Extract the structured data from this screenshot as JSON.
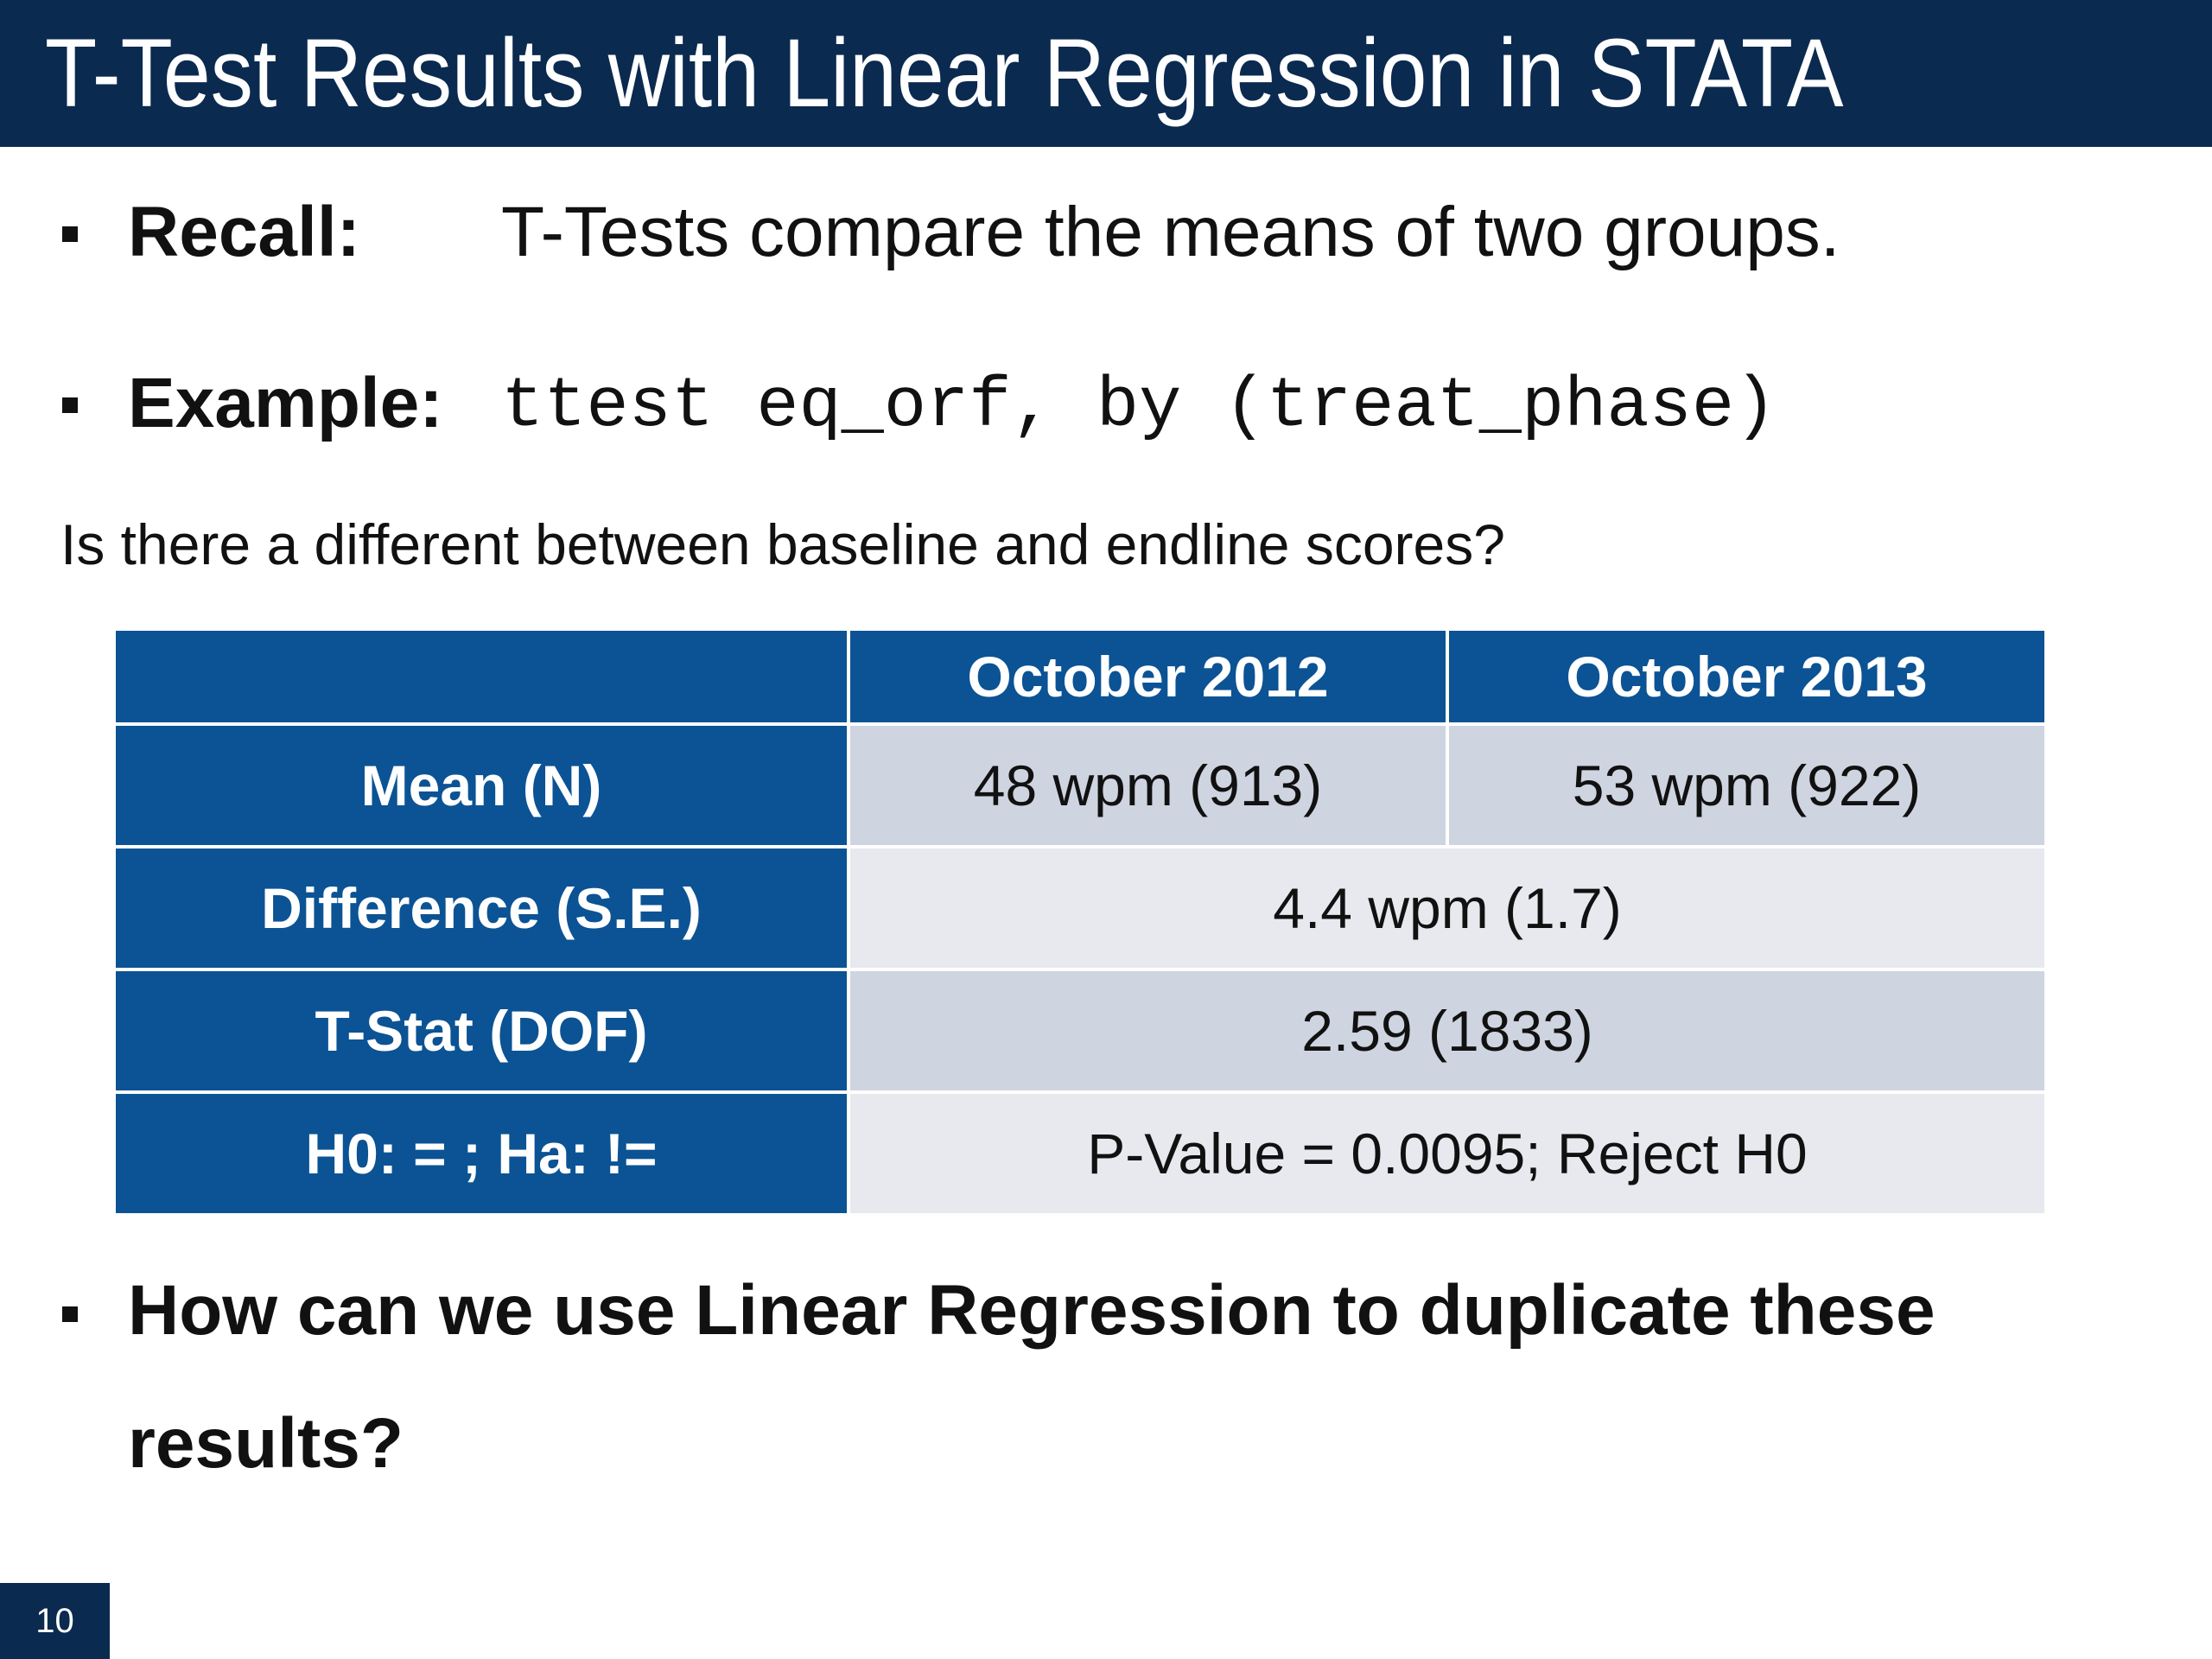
{
  "slide": {
    "title": "T-Test Results with Linear Regression in STATA",
    "bullets": [
      {
        "label": "Recall:",
        "text": "T-Tests compare the means of two groups."
      },
      {
        "label": "Example:",
        "code": "ttest eq_orf, by (treat_phase)"
      }
    ],
    "question": "Is there a different between baseline and endline scores?",
    "table": {
      "header": [
        "",
        "October 2012",
        "October 2013"
      ],
      "rows": [
        {
          "label": "Mean (N)",
          "values": [
            "48 wpm (913)",
            "53 wpm (922)"
          ]
        },
        {
          "label": "Difference (S.E.)",
          "value": "4.4 wpm (1.7)"
        },
        {
          "label": "T-Stat (DOF)",
          "value": "2.59 (1833)"
        },
        {
          "label": "H0: = ; Ha: !=",
          "value": "P-Value = 0.0095; Reject H0"
        }
      ]
    },
    "final_bullet": {
      "line1": "How can we use Linear Regression to duplicate these",
      "line2": "results?"
    },
    "page_number": "10",
    "colors": {
      "title_bar": "#0b2a4f",
      "table_header": "#0b5394",
      "cell_dark": "#ced4e0",
      "cell_light": "#e7e9ef"
    }
  }
}
